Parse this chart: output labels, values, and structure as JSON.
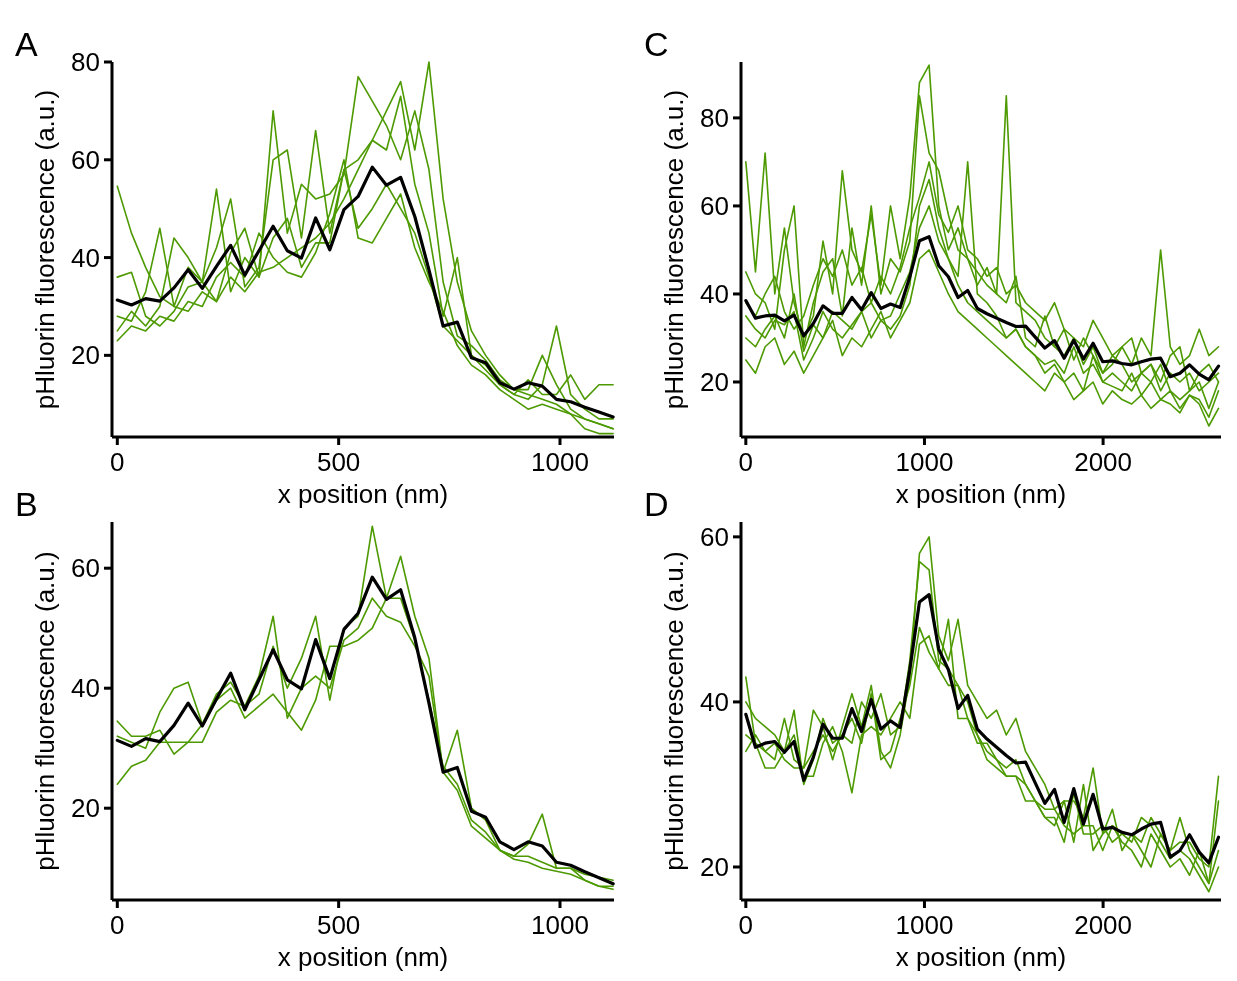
{
  "chart_data": [
    {
      "type": "line",
      "title": "A",
      "xlabel": "x position (nm)",
      "ylabel": "pHluorin fluorescence (a.u.)",
      "xlim": [
        -12,
        1122
      ],
      "ylim": [
        3.3,
        80
      ],
      "xticks": [
        0,
        500,
        1000
      ],
      "yticks": [
        20,
        40,
        60,
        80
      ],
      "x": [
        0,
        32,
        64,
        96,
        128,
        160,
        192,
        224,
        256,
        288,
        320,
        352,
        384,
        416,
        448,
        480,
        512,
        544,
        576,
        608,
        640,
        672,
        704,
        736,
        768,
        800,
        832,
        864,
        896,
        928,
        960,
        992,
        1024,
        1056,
        1088,
        1120
      ],
      "series": [
        {
          "color": "#4d9a00",
          "values": [
            54.6,
            45,
            38,
            32,
            30,
            29,
            33,
            31,
            36,
            33,
            37,
            38,
            40,
            42,
            44,
            47,
            52,
            58,
            64,
            70,
            76,
            62,
            80,
            52,
            35,
            25,
            20,
            16,
            13,
            12,
            11,
            10,
            8,
            7,
            6,
            5
          ]
        },
        {
          "color": "#4d9a00",
          "values": [
            28,
            27,
            33,
            46,
            30,
            38,
            35,
            54,
            33,
            40,
            36,
            70,
            45,
            55,
            52,
            53,
            57,
            77,
            72,
            67,
            60,
            70,
            58,
            35,
            24,
            22,
            19,
            15,
            13,
            13,
            20,
            14,
            9,
            7,
            6,
            5
          ]
        },
        {
          "color": "#4d9a00",
          "values": [
            25,
            29,
            26,
            30,
            44,
            40,
            35,
            42,
            52,
            34,
            38,
            60,
            62,
            44,
            66,
            45,
            58,
            60,
            64,
            62,
            73,
            55,
            45,
            28,
            40,
            20,
            18,
            14,
            12,
            15,
            12,
            12,
            16,
            11,
            14,
            14
          ]
        },
        {
          "color": "#4d9a00",
          "values": [
            36,
            37,
            28,
            26,
            29,
            34,
            35,
            31,
            41,
            46,
            36,
            44,
            48,
            38,
            43,
            43,
            58,
            46,
            50,
            55,
            50,
            45,
            36,
            26,
            23,
            20,
            17,
            14,
            12,
            11,
            14,
            26,
            12,
            9,
            7,
            7
          ]
        },
        {
          "color": "#4d9a00",
          "values": [
            23,
            26,
            25,
            28,
            27,
            31,
            30,
            36,
            39,
            36,
            45,
            40,
            37,
            36,
            41,
            49,
            60,
            44,
            43,
            48,
            53,
            42,
            35,
            29,
            22,
            18,
            16,
            13,
            11,
            9,
            10,
            9,
            8,
            5,
            4,
            4
          ]
        },
        {
          "color": "#000000",
          "values": [
            31.3,
            30.3,
            31.6,
            31.1,
            33.8,
            37.5,
            33.7,
            38.2,
            42.5,
            36.4,
            41.4,
            46.4,
            41.4,
            39.9,
            48.1,
            41.6,
            49.8,
            52.5,
            58.5,
            54.8,
            56.4,
            48.4,
            37.5,
            26.0,
            26.8,
            19.5,
            18.5,
            14.4,
            13.1,
            14.4,
            13.7,
            11.0,
            10.5,
            9.4,
            8.4,
            7.4
          ]
        }
      ]
    },
    {
      "type": "line",
      "title": "B",
      "xlabel": "x position (nm)",
      "ylabel": "pHluorin fluorescence (a.u.)",
      "xlim": [
        -12,
        1122
      ],
      "ylim": [
        4.7,
        67.7
      ],
      "xticks": [
        0,
        500,
        1000
      ],
      "yticks": [
        20,
        40,
        60
      ],
      "x": [
        0,
        32,
        64,
        96,
        128,
        160,
        192,
        224,
        256,
        288,
        320,
        352,
        384,
        416,
        448,
        480,
        512,
        544,
        576,
        608,
        640,
        672,
        704,
        736,
        768,
        800,
        832,
        864,
        896,
        928,
        960,
        992,
        1024,
        1056,
        1088,
        1120
      ],
      "series": [
        {
          "color": "#4d9a00",
          "values": [
            34.5,
            32,
            32,
            33,
            29,
            31,
            31,
            36,
            38,
            37,
            39,
            47,
            40,
            45,
            52,
            38,
            50,
            52,
            67,
            55,
            62,
            52,
            45,
            26,
            33,
            20,
            18,
            13,
            12,
            14,
            19,
            10,
            10,
            9,
            8.5,
            8
          ]
        },
        {
          "color": "#4d9a00",
          "values": [
            32,
            31,
            30,
            36,
            40,
            41,
            34,
            39,
            41,
            37,
            42,
            52,
            35,
            40,
            42,
            40,
            48,
            50,
            55,
            52,
            51,
            47,
            42,
            26,
            23,
            17,
            15,
            13,
            12,
            12,
            11,
            10,
            10,
            8,
            7,
            6.5
          ]
        },
        {
          "color": "#4d9a00",
          "values": [
            24,
            27,
            28,
            31,
            31,
            31,
            34,
            38,
            40,
            35,
            37,
            39,
            36,
            33,
            38,
            47,
            47,
            48,
            50,
            55,
            55,
            48,
            38,
            27,
            24,
            18,
            16,
            13,
            11.5,
            11,
            10,
            9.5,
            9,
            8,
            7,
            7
          ]
        },
        {
          "color": "#000000",
          "values": [
            31.3,
            30.3,
            31.6,
            31.1,
            33.8,
            37.5,
            33.7,
            38.2,
            42.5,
            36.4,
            41.4,
            46.4,
            41.4,
            39.9,
            48.1,
            41.6,
            49.8,
            52.5,
            58.5,
            54.8,
            56.4,
            48.4,
            37.5,
            26.0,
            26.8,
            19.5,
            18.5,
            14.4,
            13.1,
            14.4,
            13.7,
            11.0,
            10.5,
            9.4,
            8.4,
            7.4
          ]
        }
      ]
    },
    {
      "type": "line",
      "title": "C",
      "xlabel": "x position (nm)",
      "ylabel": "pHluorin fluorescence (a.u.)",
      "xlim": [
        -27,
        2660
      ],
      "ylim": [
        7.5,
        92.7
      ],
      "xticks": [
        0,
        1000,
        2000
      ],
      "yticks": [
        20,
        40,
        60,
        80
      ],
      "x": [
        0,
        54,
        108,
        162,
        216,
        270,
        324,
        378,
        432,
        486,
        540,
        594,
        648,
        702,
        756,
        810,
        864,
        918,
        972,
        1026,
        1080,
        1134,
        1188,
        1242,
        1296,
        1350,
        1404,
        1458,
        1512,
        1566,
        1620,
        1674,
        1728,
        1782,
        1836,
        1890,
        1944,
        1998,
        2052,
        2106,
        2160,
        2214,
        2268,
        2322,
        2376,
        2430,
        2484,
        2538,
        2592,
        2646
      ],
      "series": [
        {
          "color": "#4d9a00",
          "values": [
            70,
            45,
            72,
            40,
            55,
            38,
            30,
            35,
            52,
            40,
            68,
            50,
            45,
            58,
            42,
            60,
            48,
            62,
            88,
            92,
            60,
            50,
            55,
            48,
            45,
            42,
            40,
            38,
            44,
            30,
            28,
            35,
            28,
            32,
            25,
            30,
            26,
            22,
            24,
            28,
            30,
            22,
            24,
            20,
            26,
            28,
            18,
            22,
            24,
            20
          ]
        },
        {
          "color": "#4d9a00",
          "values": [
            30,
            28,
            32,
            35,
            30,
            40,
            27,
            33,
            30,
            36,
            34,
            32,
            36,
            30,
            34,
            35,
            40,
            45,
            55,
            60,
            52,
            48,
            44,
            70,
            40,
            38,
            35,
            30,
            32,
            28,
            26,
            22,
            24,
            20,
            22,
            18,
            26,
            20,
            19,
            18,
            22,
            17,
            20,
            16,
            18,
            14,
            17,
            16,
            12,
            18
          ]
        },
        {
          "color": "#4d9a00",
          "values": [
            45,
            40,
            38,
            32,
            50,
            60,
            28,
            38,
            45,
            48,
            35,
            55,
            42,
            60,
            40,
            48,
            45,
            52,
            85,
            72,
            68,
            58,
            50,
            48,
            42,
            46,
            40,
            85,
            38,
            36,
            34,
            30,
            28,
            26,
            30,
            24,
            28,
            22,
            26,
            24,
            20,
            22,
            24,
            18,
            22,
            20,
            22,
            18,
            20,
            22
          ]
        },
        {
          "color": "#4d9a00",
          "values": [
            25,
            22,
            28,
            30,
            24,
            27,
            22,
            26,
            30,
            34,
            26,
            30,
            28,
            32,
            36,
            30,
            34,
            38,
            48,
            50,
            45,
            40,
            36,
            34,
            32,
            30,
            28,
            26,
            24,
            22,
            20,
            18,
            22,
            20,
            16,
            18,
            20,
            15,
            18,
            16,
            15,
            17,
            14,
            16,
            15,
            13,
            17,
            15,
            10,
            14
          ]
        },
        {
          "color": "#4d9a00",
          "values": [
            38,
            35,
            40,
            44,
            36,
            32,
            35,
            42,
            48,
            44,
            50,
            42,
            46,
            38,
            44,
            40,
            46,
            55,
            62,
            70,
            58,
            54,
            60,
            50,
            48,
            44,
            46,
            40,
            42,
            38,
            36,
            34,
            38,
            32,
            30,
            28,
            34,
            30,
            26,
            28,
            24,
            30,
            26,
            50,
            28,
            24,
            26,
            32,
            26,
            28
          ]
        },
        {
          "color": "#4d9a00",
          "values": [
            35,
            32,
            30,
            34,
            33,
            36,
            25,
            30,
            36,
            32,
            30,
            33,
            36,
            38,
            34,
            32,
            35,
            42,
            60,
            66,
            55,
            48,
            42,
            38,
            36,
            34,
            32,
            30,
            32,
            28,
            26,
            24,
            25,
            22,
            28,
            22,
            24,
            20,
            22,
            20,
            18,
            22,
            20,
            24,
            18,
            16,
            18,
            20,
            14,
            20
          ]
        },
        {
          "color": "#000000",
          "values": [
            38.5,
            34.5,
            35.0,
            35.2,
            33.9,
            35.2,
            30.5,
            33.3,
            37.3,
            35.6,
            35.6,
            39.2,
            36.4,
            40.3,
            36.7,
            37.7,
            36.9,
            43.9,
            52.1,
            53.0,
            46.4,
            43.9,
            39.2,
            40.8,
            36.7,
            35.5,
            34.5,
            33.5,
            32.6,
            32.7,
            30.2,
            27.7,
            29.4,
            25.4,
            29.5,
            25.2,
            28.8,
            24.6,
            24.8,
            24.2,
            23.9,
            24.6,
            25.2,
            25.4,
            21.2,
            22.0,
            23.9,
            21.8,
            20.5,
            23.6
          ]
        }
      ]
    },
    {
      "type": "line",
      "title": "D",
      "xlabel": "x position (nm)",
      "ylabel": "pHluorin fluorescence (a.u.)",
      "xlim": [
        -27,
        2660
      ],
      "ylim": [
        16,
        61.8
      ],
      "xticks": [
        0,
        1000,
        2000
      ],
      "yticks": [
        20,
        40,
        60
      ],
      "x": [
        0,
        54,
        108,
        162,
        216,
        270,
        324,
        378,
        432,
        486,
        540,
        594,
        648,
        702,
        756,
        810,
        864,
        918,
        972,
        1026,
        1080,
        1134,
        1188,
        1242,
        1296,
        1350,
        1404,
        1458,
        1512,
        1566,
        1620,
        1674,
        1728,
        1782,
        1836,
        1890,
        1944,
        1998,
        2052,
        2106,
        2160,
        2214,
        2268,
        2322,
        2376,
        2430,
        2484,
        2538,
        2592,
        2646
      ],
      "series": [
        {
          "color": "#4d9a00",
          "values": [
            43,
            35,
            34,
            33,
            38,
            33,
            32,
            39,
            37,
            33,
            37,
            41,
            37,
            42,
            34,
            32,
            36,
            43,
            58,
            60,
            48,
            45,
            50,
            42,
            40,
            38,
            39,
            36,
            38,
            34,
            32,
            30,
            27,
            28,
            28,
            26,
            32,
            24,
            27,
            22,
            24,
            22,
            20,
            24,
            22,
            26,
            22,
            20,
            18,
            28
          ]
        },
        {
          "color": "#4d9a00",
          "values": [
            40,
            38,
            37,
            36,
            34,
            39,
            30,
            33,
            38,
            35,
            36,
            35,
            40,
            38,
            41,
            36,
            37,
            45,
            57,
            56,
            45,
            44,
            42,
            38,
            36,
            34,
            33,
            32,
            33,
            30,
            28,
            26,
            25,
            28,
            23,
            30,
            22,
            24,
            25,
            23,
            22,
            20,
            24,
            22,
            20,
            21,
            19,
            22,
            18,
            22
          ]
        },
        {
          "color": "#4d9a00",
          "values": [
            34,
            36,
            34,
            35,
            33,
            32,
            32,
            34,
            36,
            34,
            36,
            38,
            35,
            41,
            33,
            34,
            38,
            42,
            49,
            46,
            44,
            42,
            42,
            40,
            36,
            33,
            32,
            31,
            31,
            30,
            28,
            26,
            26,
            23,
            29,
            24,
            24,
            25,
            23,
            24,
            24,
            23,
            26,
            24,
            22,
            23,
            23,
            21,
            20,
            31
          ]
        },
        {
          "color": "#4d9a00",
          "values": [
            36,
            35,
            32,
            32,
            34,
            36,
            31,
            31,
            35,
            37,
            34,
            29,
            36,
            37,
            36,
            38,
            40,
            38,
            47,
            48,
            44,
            50,
            38,
            38,
            35,
            35,
            33,
            31,
            31,
            28,
            28,
            27,
            27,
            25,
            24,
            25,
            25,
            22,
            25,
            24,
            23,
            26,
            25,
            23,
            21,
            22,
            21,
            19,
            17,
            20
          ]
        },
        {
          "color": "#000000",
          "values": [
            38.5,
            34.5,
            35.0,
            35.2,
            33.9,
            35.2,
            30.5,
            33.3,
            37.3,
            35.6,
            35.6,
            39.2,
            36.4,
            40.3,
            36.7,
            37.7,
            36.9,
            43.9,
            52.1,
            53.0,
            46.4,
            43.9,
            39.2,
            40.8,
            36.7,
            35.5,
            34.5,
            33.5,
            32.6,
            32.7,
            30.2,
            27.7,
            29.4,
            25.4,
            29.5,
            25.2,
            28.8,
            24.6,
            24.8,
            24.2,
            23.9,
            24.6,
            25.2,
            25.4,
            21.2,
            22.0,
            23.9,
            21.8,
            20.5,
            23.6
          ]
        }
      ]
    }
  ]
}
